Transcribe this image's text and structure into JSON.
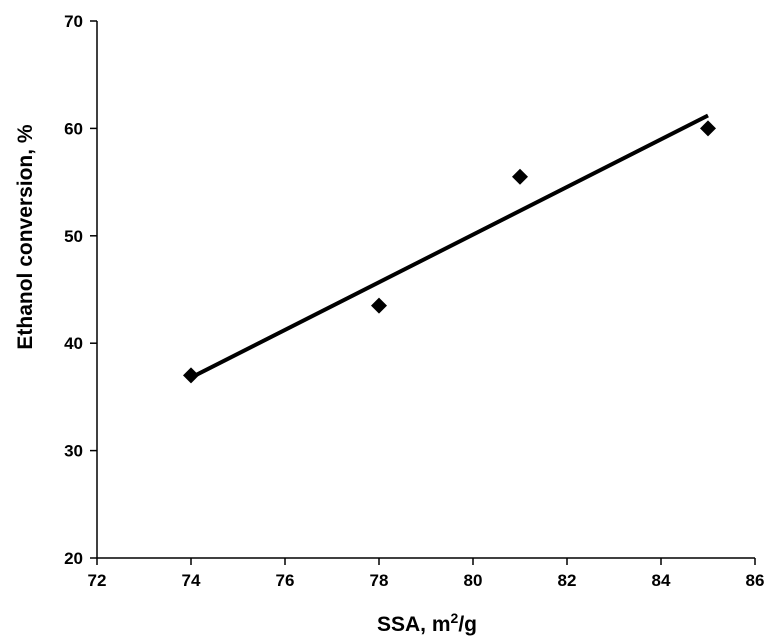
{
  "chart_data": {
    "type": "scatter",
    "title": "",
    "xlabel": "SSA, m2/g",
    "xlabel_parts": {
      "base": "SSA, m",
      "sup": "2",
      "tail": "/g"
    },
    "ylabel": "Ethanol conversion, %",
    "xlim": [
      72,
      86
    ],
    "ylim": [
      20,
      70
    ],
    "xticks": [
      72,
      74,
      76,
      78,
      80,
      82,
      84,
      86
    ],
    "yticks": [
      20,
      30,
      40,
      50,
      60,
      70
    ],
    "xtick_labels": [
      "72",
      "74",
      "76",
      "78",
      "80",
      "82",
      "84",
      "86"
    ],
    "ytick_labels": [
      "20",
      "30",
      "40",
      "50",
      "60",
      "70"
    ],
    "grid": false,
    "legend": "none",
    "marker": "diamond",
    "marker_color": "#000000",
    "series": [
      {
        "x": [
          74,
          78,
          81,
          85
        ],
        "y": [
          37,
          43.5,
          55.5,
          60
        ]
      }
    ],
    "trendline": {
      "type": "linear",
      "x": [
        74,
        85
      ],
      "y": [
        36.8,
        61.2
      ],
      "color": "#000000"
    }
  }
}
